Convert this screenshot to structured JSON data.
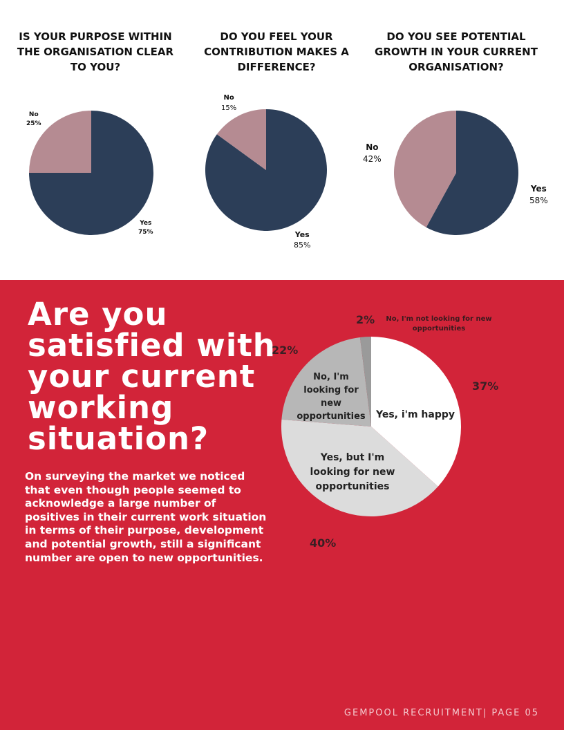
{
  "chart_data": [
    {
      "type": "pie",
      "title": "IS YOUR PURPOSE WITHIN THE ORGANISATION CLEAR TO YOU?",
      "slices": [
        {
          "label": "Yes",
          "value": 75,
          "display": "75%",
          "color": "#2c3e58"
        },
        {
          "label": "No",
          "value": 25,
          "display": "25%",
          "color": "#b58b92"
        }
      ]
    },
    {
      "type": "pie",
      "title": "DO YOU FEEL YOUR CONTRIBUTION MAKES A DIFFERENCE?",
      "slices": [
        {
          "label": "Yes",
          "value": 85,
          "display": "85%",
          "color": "#2c3e58"
        },
        {
          "label": "No",
          "value": 15,
          "display": "15%",
          "color": "#b58b92"
        }
      ]
    },
    {
      "type": "pie",
      "title": "DO YOU SEE POTENTIAL GROWTH IN YOUR CURRENT ORGANISATION?",
      "slices": [
        {
          "label": "Yes",
          "value": 58,
          "display": "58%",
          "color": "#2c3e58"
        },
        {
          "label": "No",
          "value": 42,
          "display": "42%",
          "color": "#b58b92"
        }
      ]
    },
    {
      "type": "pie",
      "title": "Are you satisfied with your current working situation?",
      "slices": [
        {
          "label": "Yes, i'm happy",
          "value": 37,
          "display": "37%",
          "color": "#ffffff"
        },
        {
          "label": "Yes, but I'm looking for new opportunities",
          "value": 40,
          "display": "40%",
          "color": "#dcdcdc"
        },
        {
          "label": "No, I'm looking for new opportunities",
          "value": 22,
          "display": "22%",
          "color": "#b7b7b7"
        },
        {
          "label": "No, I'm not looking for new opportunities",
          "value": 2,
          "display": "2%",
          "color": "#9a9a9a"
        }
      ]
    }
  ],
  "body_text": "On surveying the market we noticed that even though people seemed to acknowledge a large number of positives in their current work situation in terms of their purpose, development and potential growth, still a significant number are open to new opportunities.",
  "footer": "GEMPOOL RECRUITMENT| PAGE 05"
}
